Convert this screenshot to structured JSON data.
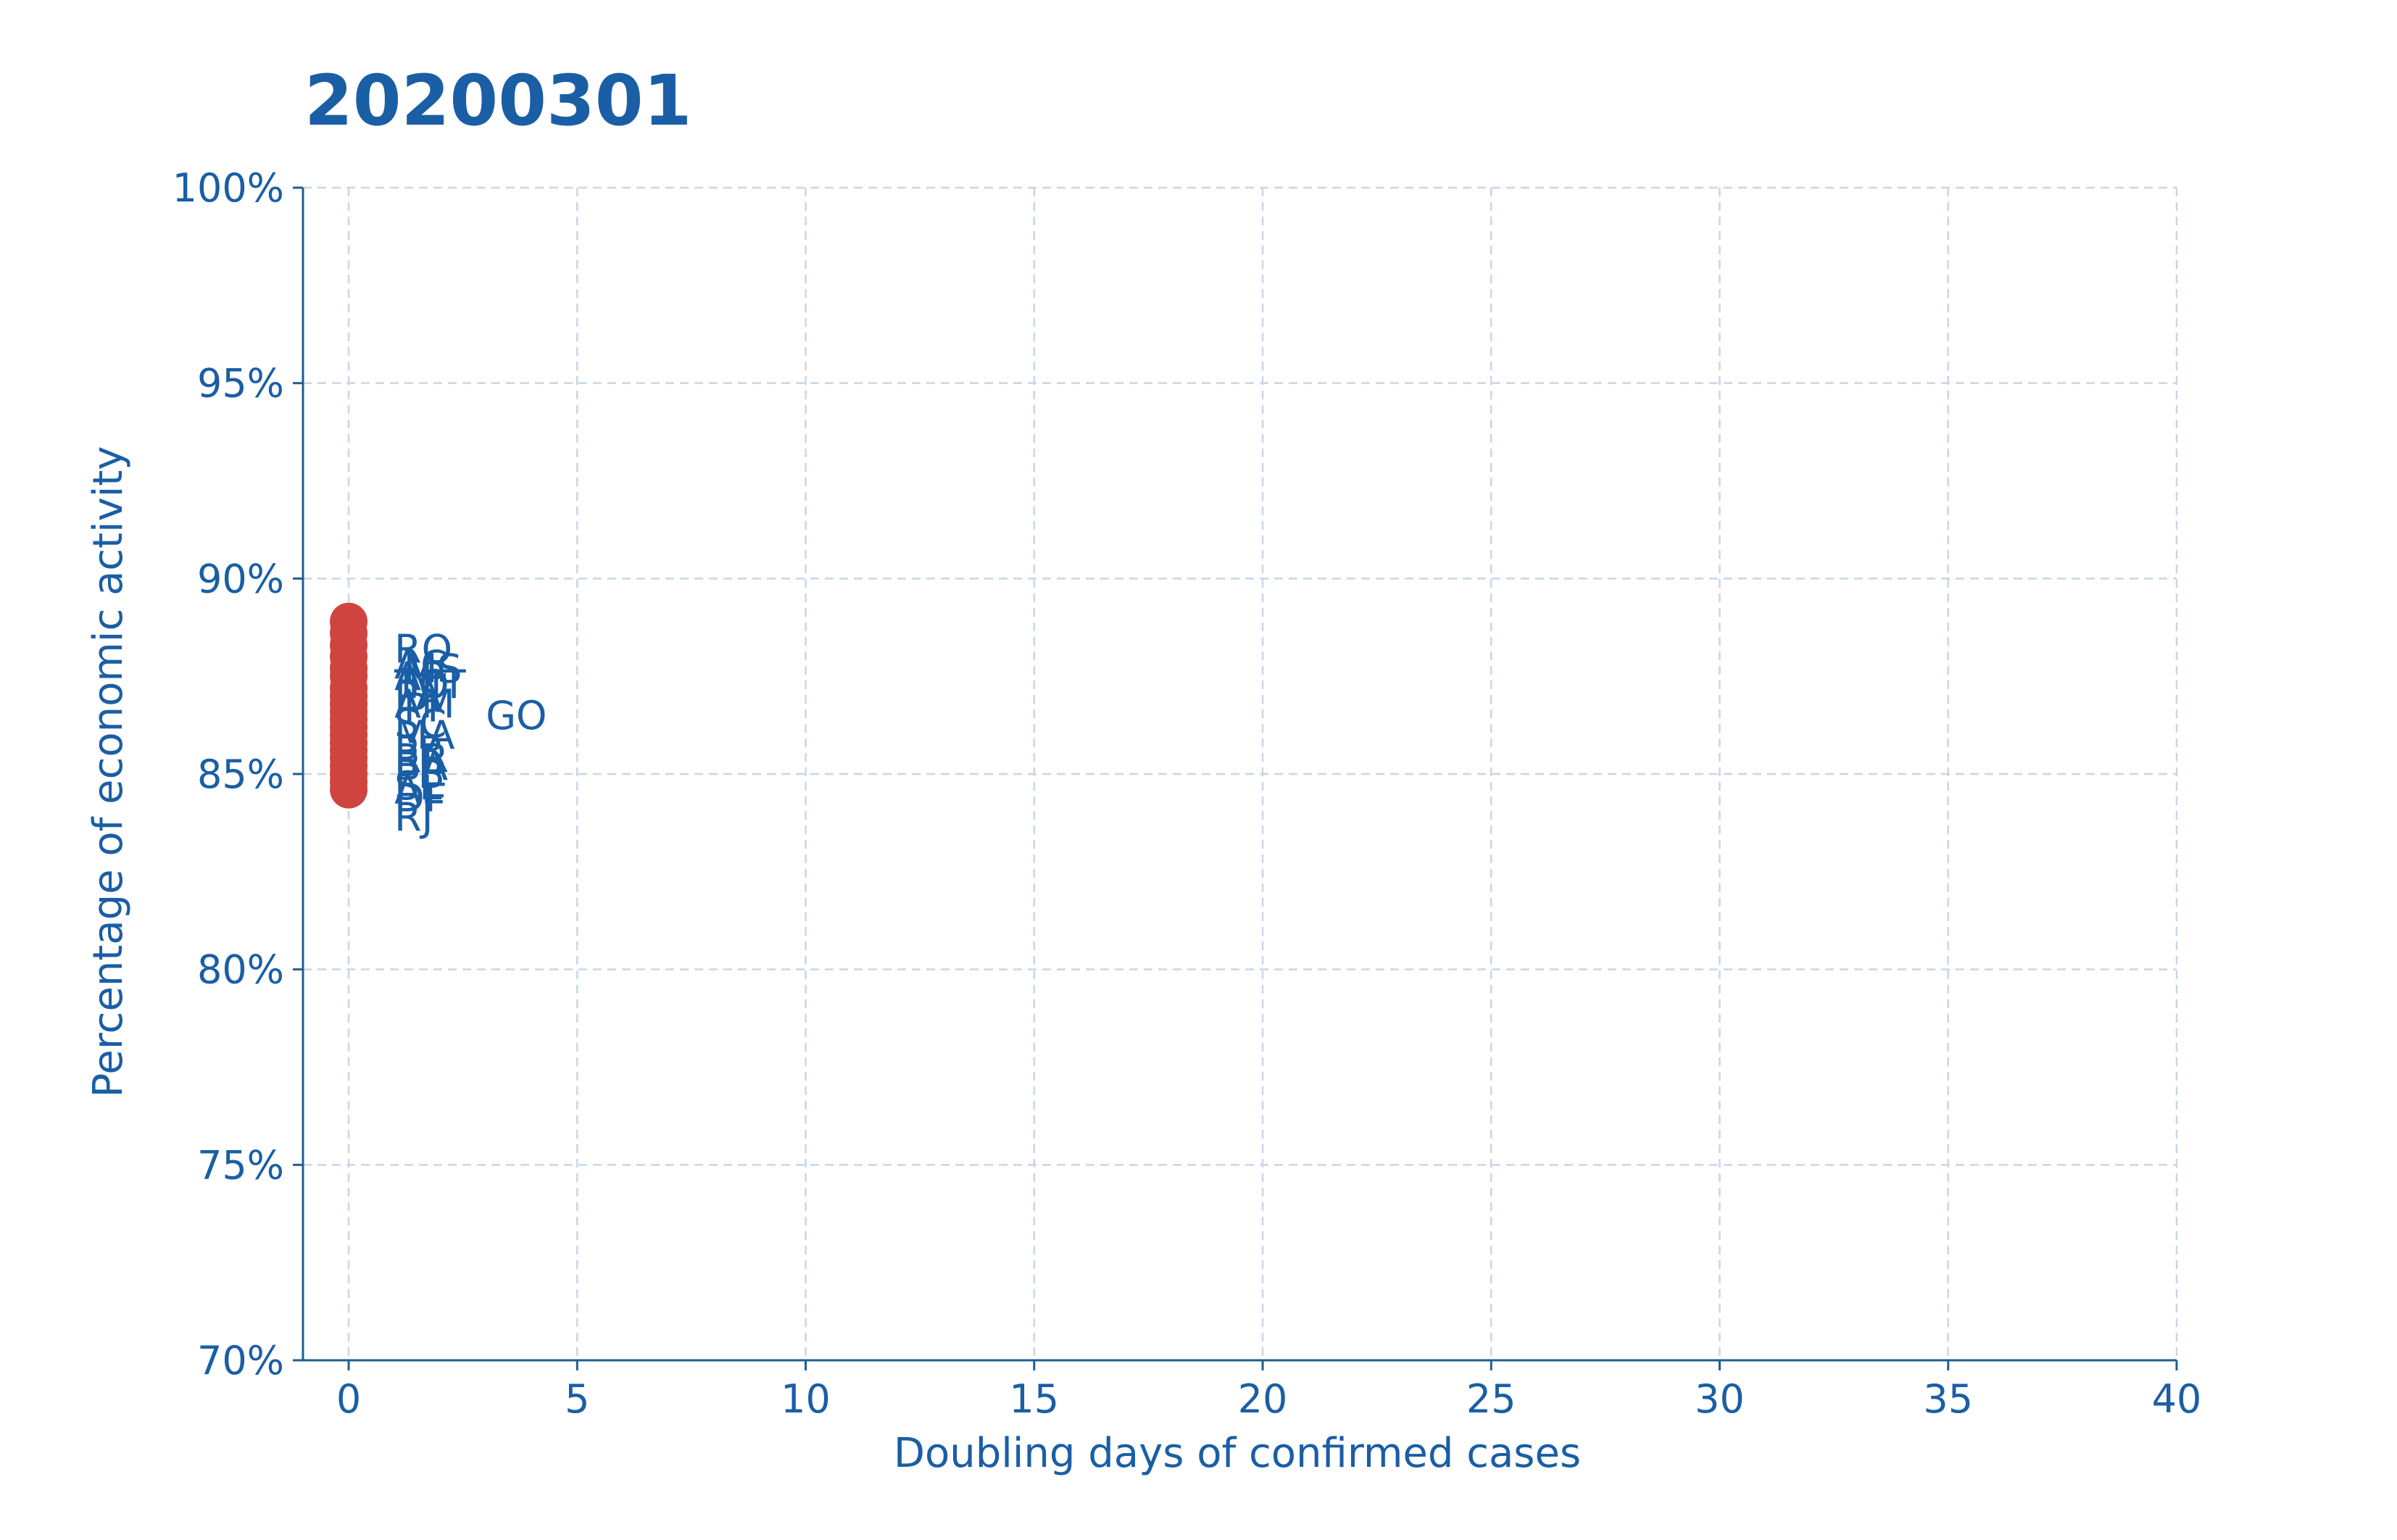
{
  "chart_data": {
    "type": "scatter",
    "title": "20200301",
    "xlabel": "Doubling days of confirmed cases",
    "ylabel": "Percentage of economic activity",
    "xlim": [
      -1,
      40
    ],
    "ylim": [
      70,
      100
    ],
    "xticks": [
      0,
      5,
      10,
      15,
      20,
      25,
      30,
      35,
      40
    ],
    "yticks": [
      70,
      75,
      80,
      85,
      90,
      95,
      100
    ],
    "ytick_suffix": "%",
    "grid": true,
    "colors": {
      "point": "#d04440",
      "text": "#1a5ea5",
      "grid": "#c8d6e8",
      "axis": "#1f5f8f"
    },
    "points": [
      {
        "label": "RO",
        "x": 0,
        "y": 88.9,
        "lx": 1.0,
        "ly": 88.2
      },
      {
        "label": "AC",
        "x": 0,
        "y": 88.6,
        "lx": 1.0,
        "ly": 87.8
      },
      {
        "label": "MS",
        "x": 0,
        "y": 88.3,
        "lx": 1.2,
        "ly": 87.7
      },
      {
        "label": "AP",
        "x": 0,
        "y": 88.0,
        "lx": 1.0,
        "ly": 87.5
      },
      {
        "label": "TO",
        "x": 0,
        "y": 87.7,
        "lx": 1.0,
        "ly": 87.3
      },
      {
        "label": "MT",
        "x": 0,
        "y": 87.5,
        "lx": 1.3,
        "ly": 87.3
      },
      {
        "label": "PA",
        "x": 0,
        "y": 87.2,
        "lx": 1.0,
        "ly": 87.0
      },
      {
        "label": "AM",
        "x": 0,
        "y": 87.0,
        "lx": 1.0,
        "ly": 86.8
      },
      {
        "label": "PI",
        "x": 0,
        "y": 86.8,
        "lx": 1.2,
        "ly": 86.7
      },
      {
        "label": "GO",
        "x": 0,
        "y": 86.6,
        "lx": 3.0,
        "ly": 86.5
      },
      {
        "label": "SC",
        "x": 0,
        "y": 86.4,
        "lx": 1.0,
        "ly": 86.3
      },
      {
        "label": "MA",
        "x": 0,
        "y": 86.2,
        "lx": 1.0,
        "ly": 86.0
      },
      {
        "label": "PR",
        "x": 0,
        "y": 86.0,
        "lx": 1.0,
        "ly": 85.6
      },
      {
        "label": "RR",
        "x": 0,
        "y": 85.8,
        "lx": 1.0,
        "ly": 85.4
      },
      {
        "label": "BA",
        "x": 0,
        "y": 85.6,
        "lx": 1.0,
        "ly": 85.2
      },
      {
        "label": "PB",
        "x": 0,
        "y": 85.4,
        "lx": 1.0,
        "ly": 85.0
      },
      {
        "label": "SE",
        "x": 0,
        "y": 85.2,
        "lx": 1.0,
        "ly": 84.7
      },
      {
        "label": "AL",
        "x": 0,
        "y": 85.0,
        "lx": 1.0,
        "ly": 84.6
      },
      {
        "label": "DF",
        "x": 0,
        "y": 84.8,
        "lx": 1.0,
        "ly": 84.4
      },
      {
        "label": "RJ",
        "x": 0,
        "y": 84.6,
        "lx": 1.0,
        "ly": 83.9
      }
    ]
  }
}
